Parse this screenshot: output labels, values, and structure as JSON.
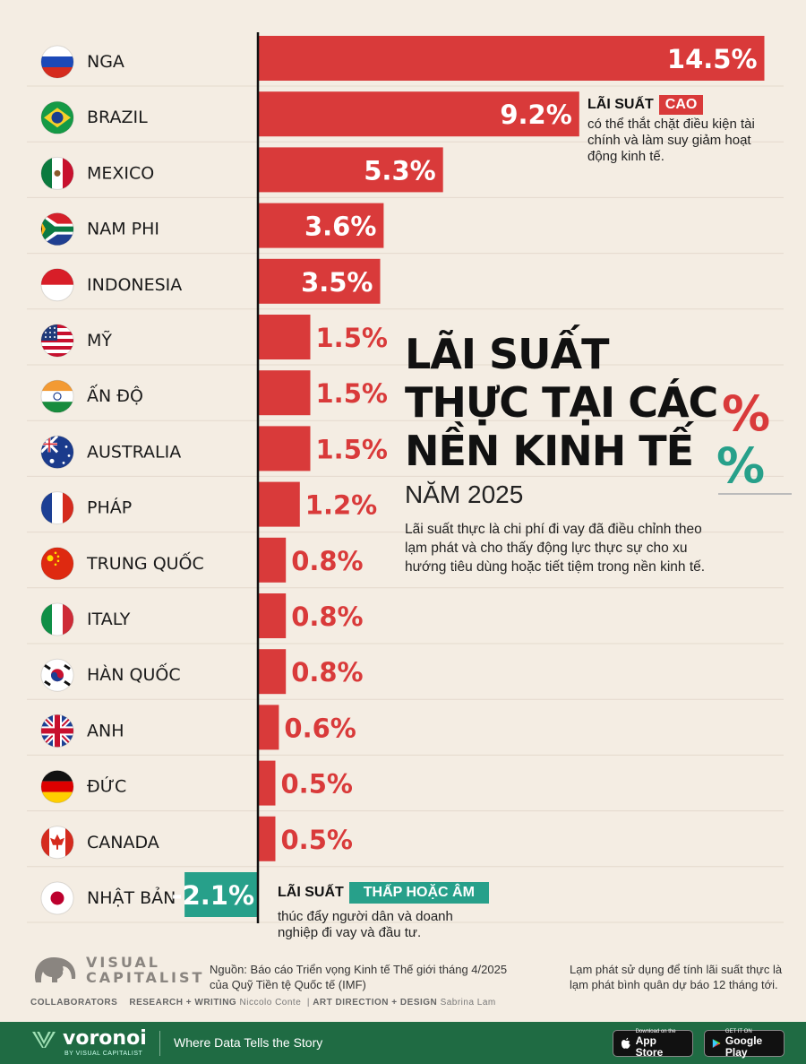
{
  "chart_data": {
    "type": "bar",
    "orientation": "horizontal",
    "title": "LÃI SUẤT THỰC TẠI CÁC NỀN KINH TẾ",
    "title_lines": [
      "LÃI SUẤT",
      "THỰC TẠI CÁC",
      "NỀN KINH TẾ"
    ],
    "subtitle": "NĂM 2025",
    "categories": [
      "NGA",
      "BRAZIL",
      "MEXICO",
      "NAM PHI",
      "INDONESIA",
      "MỸ",
      "ẤN ĐỘ",
      "AUSTRALIA",
      "PHÁP",
      "TRUNG QUỐC",
      "ITALY",
      "HÀN QUỐC",
      "ANH",
      "ĐỨC",
      "CANADA",
      "NHẬT BẢN"
    ],
    "values": [
      14.5,
      9.2,
      5.3,
      3.6,
      3.5,
      1.5,
      1.5,
      1.5,
      1.2,
      0.8,
      0.8,
      0.8,
      0.6,
      0.5,
      0.5,
      -2.1
    ],
    "value_labels": [
      "14.5%",
      "9.2%",
      "5.3%",
      "3.6%",
      "3.5%",
      "1.5%",
      "1.5%",
      "1.5%",
      "1.2%",
      "0.8%",
      "0.8%",
      "0.8%",
      "0.6%",
      "0.5%",
      "0.5%",
      "-2.1%"
    ],
    "flags": [
      "russia-flag",
      "brazil-flag",
      "mexico-flag",
      "south-africa-flag",
      "indonesia-flag",
      "usa-flag",
      "india-flag",
      "australia-flag",
      "france-flag",
      "china-flag",
      "italy-flag",
      "south-korea-flag",
      "uk-flag",
      "germany-flag",
      "canada-flag",
      "japan-flag"
    ],
    "grid": true,
    "legend": "none",
    "colors": {
      "positive": "#d93a3a",
      "negative": "#27a08a"
    }
  },
  "description": "Lãi suất thực là chi phí đi vay đã điều chỉnh theo lạm phát và cho thấy động lực thực sự cho xu hướng tiêu dùng hoặc tiết tiệm trong nền kinh tế.",
  "description_lines": [
    "Lãi suất thực là chi phí đi vay đã điều chỉnh theo",
    "lạm phát và cho thấy động lực thực sự cho xu",
    "hướng tiêu dùng hoặc tiết tiệm trong nền kinh tế."
  ],
  "decor": {
    "percent_symbol": "%"
  },
  "note_high": {
    "label": "LÃI SUẤT",
    "tag": "CAO",
    "lines": [
      "có thể thắt chặt điều kiện tài",
      "chính và làm suy giảm hoạt",
      "động kinh tế."
    ]
  },
  "note_low": {
    "label": "LÃI SUẤT",
    "tag": "THẤP HOẶC ÂM",
    "lines": [
      "thúc đẩy người dân và doanh",
      "nghiệp đi vay và đầu tư."
    ]
  },
  "footer": {
    "source_lines": [
      "Nguồn: Báo cáo Triển vọng Kinh tế Thế giới tháng 4/2025",
      "của Quỹ Tiền tệ Quốc tế (IMF)"
    ],
    "inflation_lines": [
      "Lạm phát sử dụng để tính lãi suất thực là",
      "lạm phát bình quân dự báo 12 tháng tới."
    ],
    "logo_line1": "VISUAL",
    "logo_line2": "CAPITALIST",
    "collaborators": "COLLABORATORS",
    "research_label": "RESEARCH + WRITING",
    "research_name": "Niccolo Conte",
    "art_label": "ART DIRECTION + DESIGN",
    "art_name": "Sabrina Lam"
  },
  "bottom_bar": {
    "brand": "voronoi",
    "brand_sub": "BY VISUAL CAPITALIST",
    "tagline": "Where Data Tells the Story",
    "appstore_small": "Download on the",
    "appstore_big": "App Store",
    "googleplay_small": "GET IT ON",
    "googleplay_big": "Google Play"
  }
}
